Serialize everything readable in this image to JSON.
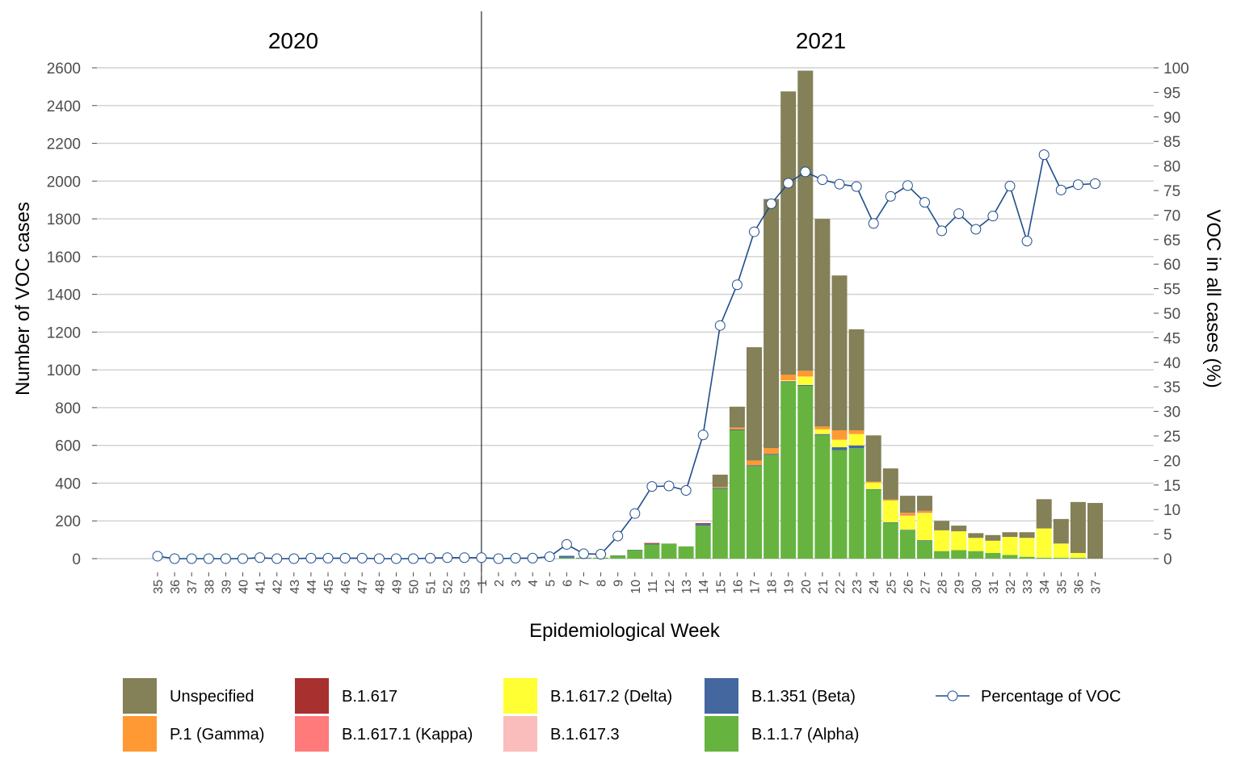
{
  "chart_data": {
    "type": "bar",
    "stacked": true,
    "years": [
      {
        "label": "2020",
        "from_week": "35",
        "to_week": "53"
      },
      {
        "label": "2021",
        "from_week": "1",
        "to_week": "37"
      }
    ],
    "categories": [
      "35",
      "36",
      "37",
      "38",
      "39",
      "40",
      "41",
      "42",
      "43",
      "44",
      "45",
      "46",
      "47",
      "48",
      "49",
      "50",
      "51",
      "52",
      "53",
      "1",
      "2",
      "3",
      "4",
      "5",
      "6",
      "7",
      "8",
      "9",
      "10",
      "11",
      "12",
      "13",
      "14",
      "15",
      "16",
      "17",
      "18",
      "19",
      "20",
      "21",
      "22",
      "23",
      "24",
      "25",
      "26",
      "27",
      "28",
      "29",
      "30",
      "31",
      "32",
      "33",
      "34",
      "35",
      "36",
      "37"
    ],
    "xlabel": "Epidemiological Week",
    "ylabel": "Number of VOC cases",
    "y2label": "VOC in all cases (%)",
    "ylim": [
      0,
      2600
    ],
    "yticks": [
      0,
      200,
      400,
      600,
      800,
      1000,
      1200,
      1400,
      1600,
      1800,
      2000,
      2200,
      2400,
      2600
    ],
    "y2lim": [
      0,
      100
    ],
    "y2ticks": [
      0,
      5,
      10,
      15,
      20,
      25,
      30,
      35,
      40,
      45,
      50,
      55,
      60,
      65,
      70,
      75,
      80,
      85,
      90,
      95,
      100
    ],
    "year_divider_after": "53",
    "series": [
      {
        "name": "B.1.1.7 (Alpha)",
        "color": "#66b43f",
        "values": [
          0,
          0,
          0,
          0,
          0,
          0,
          0,
          0,
          0,
          0,
          0,
          0,
          0,
          0,
          0,
          0,
          0,
          0,
          0,
          0,
          0,
          0,
          0,
          0,
          5,
          3,
          5,
          15,
          45,
          75,
          80,
          65,
          175,
          370,
          680,
          490,
          550,
          935,
          915,
          655,
          575,
          585,
          365,
          190,
          150,
          95,
          40,
          45,
          40,
          30,
          20,
          10,
          5,
          5,
          5,
          0
        ]
      },
      {
        "name": "B.1.351 (Beta)",
        "color": "#44679f",
        "values": [
          0,
          0,
          0,
          0,
          0,
          0,
          0,
          0,
          0,
          0,
          0,
          0,
          0,
          0,
          0,
          0,
          0,
          0,
          0,
          0,
          0,
          0,
          0,
          0,
          10,
          2,
          0,
          2,
          2,
          3,
          0,
          0,
          8,
          5,
          5,
          5,
          5,
          5,
          5,
          5,
          15,
          15,
          3,
          3,
          3,
          3,
          0,
          0,
          0,
          0,
          0,
          0,
          0,
          0,
          0,
          0
        ]
      },
      {
        "name": "B.1.617.2 (Delta)",
        "color": "#ffff33",
        "values": [
          0,
          0,
          0,
          0,
          0,
          0,
          0,
          0,
          0,
          0,
          0,
          0,
          0,
          0,
          0,
          0,
          0,
          0,
          0,
          0,
          0,
          0,
          0,
          0,
          0,
          0,
          0,
          0,
          0,
          0,
          0,
          0,
          0,
          0,
          0,
          0,
          0,
          5,
          45,
          25,
          40,
          60,
          35,
          115,
          75,
          145,
          110,
          100,
          70,
          65,
          95,
          100,
          155,
          75,
          25,
          0
        ]
      },
      {
        "name": "B.1.617.3",
        "color": "#fbbcbc",
        "values": [
          0,
          0,
          0,
          0,
          0,
          0,
          0,
          0,
          0,
          0,
          0,
          0,
          0,
          0,
          0,
          0,
          0,
          0,
          0,
          0,
          0,
          0,
          0,
          0,
          0,
          0,
          0,
          0,
          0,
          0,
          0,
          0,
          0,
          0,
          0,
          0,
          0,
          0,
          0,
          0,
          0,
          0,
          0,
          0,
          0,
          0,
          0,
          0,
          0,
          0,
          0,
          0,
          0,
          0,
          0,
          0
        ]
      },
      {
        "name": "B.1.617.1 (Kappa)",
        "color": "#ff7a7a",
        "values": [
          0,
          0,
          0,
          0,
          0,
          0,
          0,
          0,
          0,
          0,
          0,
          0,
          0,
          0,
          0,
          0,
          0,
          0,
          0,
          0,
          0,
          0,
          0,
          0,
          0,
          0,
          0,
          0,
          0,
          0,
          0,
          0,
          0,
          0,
          0,
          0,
          0,
          0,
          0,
          0,
          0,
          0,
          0,
          0,
          5,
          5,
          0,
          0,
          0,
          0,
          0,
          0,
          0,
          0,
          0,
          0
        ]
      },
      {
        "name": "B.1.617",
        "color": "#a8302f",
        "values": [
          0,
          0,
          0,
          0,
          0,
          0,
          0,
          0,
          0,
          0,
          0,
          0,
          0,
          0,
          0,
          0,
          0,
          0,
          0,
          0,
          0,
          0,
          0,
          0,
          0,
          0,
          0,
          0,
          0,
          5,
          0,
          0,
          5,
          0,
          0,
          0,
          0,
          0,
          0,
          0,
          0,
          0,
          0,
          0,
          0,
          0,
          0,
          0,
          0,
          0,
          0,
          0,
          0,
          0,
          0,
          0
        ]
      },
      {
        "name": "P.1 (Gamma)",
        "color": "#ff9933",
        "values": [
          0,
          0,
          0,
          0,
          0,
          0,
          0,
          0,
          0,
          0,
          0,
          0,
          0,
          0,
          0,
          0,
          0,
          0,
          0,
          0,
          0,
          0,
          0,
          0,
          0,
          0,
          0,
          0,
          0,
          0,
          0,
          0,
          0,
          5,
          10,
          25,
          30,
          30,
          30,
          15,
          50,
          20,
          5,
          5,
          10,
          5,
          0,
          0,
          0,
          0,
          0,
          0,
          0,
          0,
          0,
          0
        ]
      },
      {
        "name": "Unspecified",
        "color": "#848057",
        "values": [
          0,
          0,
          0,
          0,
          0,
          0,
          0,
          0,
          0,
          0,
          0,
          0,
          0,
          0,
          0,
          0,
          0,
          0,
          0,
          0,
          0,
          0,
          0,
          0,
          0,
          0,
          0,
          0,
          0,
          0,
          0,
          0,
          0,
          65,
          110,
          600,
          1320,
          1500,
          1590,
          1100,
          820,
          535,
          245,
          165,
          90,
          80,
          50,
          30,
          25,
          30,
          25,
          30,
          155,
          130,
          270,
          295
        ]
      }
    ],
    "line": {
      "name": "Percentage of VOC",
      "color": "#1f4e8c",
      "values": [
        0.5,
        0,
        0,
        0,
        0,
        0,
        0.2,
        0,
        0,
        0.1,
        0.1,
        0.1,
        0.1,
        0,
        0,
        0,
        0.1,
        0.2,
        0.2,
        0.2,
        0,
        0.1,
        0.1,
        0.4,
        2.9,
        1,
        0.9,
        4.6,
        9.2,
        14.7,
        14.8,
        13.9,
        25.2,
        47.5,
        55.8,
        66.6,
        72.3,
        76.5,
        78.8,
        77.2,
        76.3,
        75.8,
        68.3,
        73.8,
        76,
        72.6,
        66.8,
        70.3,
        67.1,
        69.8,
        75.9,
        64.7,
        82.3,
        75.1,
        76.2,
        76.4
      ]
    },
    "legend_order": [
      "Unspecified",
      "P.1 (Gamma)",
      "B.1.617",
      "B.1.617.1 (Kappa)",
      "B.1.617.2 (Delta)",
      "B.1.617.3",
      "B.1.351 (Beta)",
      "B.1.1.7 (Alpha)",
      "Percentage of VOC"
    ],
    "legend_position": "bottom"
  }
}
